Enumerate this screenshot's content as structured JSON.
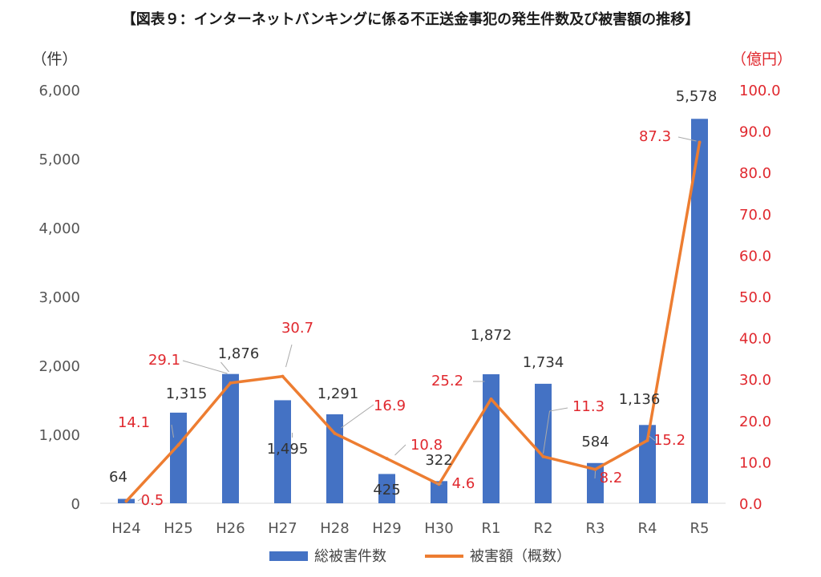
{
  "chart_data": {
    "type": "bar+line",
    "title": "【図表９：インターネットバンキングに係る不正送金事犯の発生件数及び被害額の推移】",
    "categories": [
      "H24",
      "H25",
      "H26",
      "H27",
      "H28",
      "H29",
      "H30",
      "R1",
      "R2",
      "R3",
      "R4",
      "R5"
    ],
    "series": [
      {
        "name": "総被害件数",
        "type": "bar",
        "axis": "left",
        "color": "#4472C4",
        "values": [
          64,
          1315,
          1876,
          1495,
          1291,
          425,
          322,
          1872,
          1734,
          584,
          1136,
          5578
        ],
        "labels": [
          "64",
          "1,315",
          "1,876",
          "1,495",
          "1,291",
          "425",
          "322",
          "1,872",
          "1,734",
          "584",
          "1,136",
          "5,578"
        ]
      },
      {
        "name": "被害額（概数）",
        "type": "line",
        "axis": "right",
        "color": "#ED7D31",
        "label_color": "#E0282E",
        "values": [
          0.5,
          14.1,
          29.1,
          30.7,
          16.9,
          10.8,
          4.6,
          25.2,
          11.3,
          8.2,
          15.2,
          87.3
        ],
        "labels": [
          "0.5",
          "14.1",
          "29.1",
          "30.7",
          "16.9",
          "10.8",
          "4.6",
          "25.2",
          "11.3",
          "8.2",
          "15.2",
          "87.3"
        ]
      }
    ],
    "y_left": {
      "label": "（件）",
      "min": 0,
      "max": 6000,
      "ticks": [
        "0",
        "1,000",
        "2,000",
        "3,000",
        "4,000",
        "5,000",
        "6,000"
      ]
    },
    "y_right": {
      "label": "（億円）",
      "min": 0,
      "max": 100,
      "color": "#E0282E",
      "ticks": [
        "0.0",
        "10.0",
        "20.0",
        "30.0",
        "40.0",
        "50.0",
        "60.0",
        "70.0",
        "80.0",
        "90.0",
        "100.0"
      ]
    },
    "grid": false,
    "legend": {
      "placement": "bottom",
      "items": [
        "総被害件数",
        "被害額（概数）"
      ]
    }
  }
}
